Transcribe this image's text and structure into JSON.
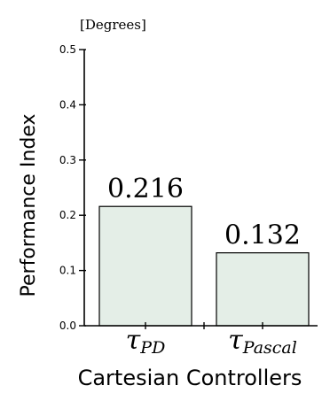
{
  "chart_data": {
    "type": "bar",
    "unit_label": "[Degrees]",
    "ylabel": "Performance Index",
    "xlabel": "Cartesian Controllers",
    "categories": [
      {
        "symbol": "τ",
        "subscript": "PD"
      },
      {
        "symbol": "τ",
        "subscript": "Pascal"
      }
    ],
    "values": [
      0.216,
      0.132
    ],
    "data_labels": [
      "0.216",
      "0.132"
    ],
    "ylim": [
      0,
      0.5
    ],
    "yticks": [
      0.0,
      0.1,
      0.2,
      0.3,
      0.4,
      0.5
    ],
    "ytick_labels": [
      "0.0",
      "0.1",
      "0.2",
      "0.3",
      "0.4",
      "0.5"
    ],
    "grid": false,
    "legend": "none",
    "bar_fill": "#e4eee7",
    "bar_stroke": "#000000"
  }
}
